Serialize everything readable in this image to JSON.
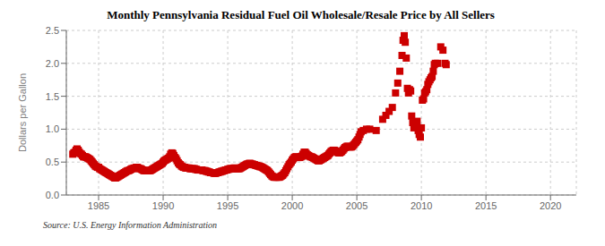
{
  "chart_data": {
    "type": "scatter",
    "title": "Monthly Pennsylvania Residual Fuel Oil Wholesale/Resale Price by All Sellers",
    "y_label": "Dollars per Gallon",
    "annotations": [
      "Source: U.S. Energy Information Administration"
    ],
    "color": "#cc0000",
    "marker": "square",
    "grid": true,
    "xlim": [
      1982.5,
      2022
    ],
    "xticks": [
      1985,
      1990,
      1995,
      2000,
      2005,
      2010,
      2015,
      2020
    ],
    "ylim": [
      0.0,
      2.5
    ],
    "yticks": [
      {
        "value": 0,
        "label": "0.0"
      },
      0.5,
      {
        "value": 1,
        "label": "1.0"
      },
      1.5,
      {
        "value": 2,
        "label": "2.0"
      },
      2.5
    ],
    "x": [
      1983.0,
      1983.08,
      1983.17,
      1983.25,
      1983.33,
      1983.42,
      1983.5,
      1983.58,
      1983.67,
      1983.75,
      1983.83,
      1983.92,
      1984.0,
      1984.08,
      1984.17,
      1984.25,
      1984.33,
      1984.42,
      1984.5,
      1984.58,
      1984.67,
      1984.75,
      1984.83,
      1984.92,
      1985.0,
      1985.08,
      1985.17,
      1985.25,
      1985.33,
      1985.42,
      1985.5,
      1985.58,
      1985.67,
      1985.75,
      1985.83,
      1985.92,
      1986.0,
      1986.08,
      1986.17,
      1986.25,
      1986.33,
      1986.42,
      1986.5,
      1986.58,
      1986.67,
      1986.75,
      1986.83,
      1986.92,
      1987.0,
      1987.08,
      1987.17,
      1987.25,
      1987.33,
      1987.42,
      1987.5,
      1987.58,
      1987.67,
      1987.75,
      1987.83,
      1987.92,
      1988.0,
      1988.08,
      1988.17,
      1988.25,
      1988.33,
      1988.42,
      1988.5,
      1988.58,
      1988.67,
      1988.75,
      1988.83,
      1988.92,
      1989.0,
      1989.08,
      1989.17,
      1989.25,
      1989.33,
      1989.42,
      1989.5,
      1989.58,
      1989.67,
      1989.75,
      1989.83,
      1989.92,
      1990.0,
      1990.08,
      1990.17,
      1990.25,
      1990.33,
      1990.42,
      1990.5,
      1990.58,
      1990.67,
      1990.75,
      1990.83,
      1990.92,
      1991.0,
      1991.08,
      1991.17,
      1991.25,
      1991.33,
      1991.42,
      1991.5,
      1991.58,
      1991.67,
      1991.75,
      1991.83,
      1991.92,
      1992.0,
      1992.08,
      1992.17,
      1992.25,
      1992.33,
      1992.42,
      1992.5,
      1992.58,
      1992.67,
      1992.75,
      1992.83,
      1992.92,
      1993.0,
      1993.08,
      1993.17,
      1993.25,
      1993.33,
      1993.42,
      1993.5,
      1993.58,
      1993.67,
      1993.75,
      1993.83,
      1993.92,
      1994.0,
      1994.08,
      1994.17,
      1994.25,
      1994.33,
      1994.42,
      1994.5,
      1994.58,
      1994.67,
      1994.75,
      1994.83,
      1994.92,
      1995.0,
      1995.08,
      1995.17,
      1995.25,
      1995.33,
      1995.42,
      1995.5,
      1995.58,
      1995.67,
      1995.75,
      1995.83,
      1995.92,
      1996.0,
      1996.08,
      1996.17,
      1996.25,
      1996.33,
      1996.42,
      1996.5,
      1996.58,
      1996.67,
      1996.75,
      1996.83,
      1996.92,
      1997.0,
      1997.08,
      1997.17,
      1997.25,
      1997.33,
      1997.42,
      1997.5,
      1997.58,
      1997.67,
      1997.75,
      1997.83,
      1997.92,
      1998.0,
      1998.08,
      1998.17,
      1998.25,
      1998.33,
      1998.42,
      1998.5,
      1998.58,
      1998.67,
      1998.75,
      1998.83,
      1998.92,
      1999.0,
      1999.08,
      1999.17,
      1999.25,
      1999.33,
      1999.42,
      1999.5,
      1999.58,
      1999.67,
      1999.75,
      1999.83,
      1999.92,
      2000.0,
      2000.08,
      2000.17,
      2000.25,
      2000.33,
      2000.42,
      2000.5,
      2000.58,
      2000.67,
      2000.75,
      2000.83,
      2000.92,
      2001.0,
      2001.08,
      2001.17,
      2001.25,
      2001.33,
      2001.42,
      2001.5,
      2001.58,
      2001.67,
      2001.75,
      2001.83,
      2001.92,
      2002.0,
      2002.08,
      2002.17,
      2002.25,
      2002.33,
      2002.42,
      2002.5,
      2002.58,
      2002.67,
      2002.75,
      2002.83,
      2002.92,
      2003.0,
      2003.08,
      2003.17,
      2003.25,
      2003.33,
      2003.42,
      2003.5,
      2003.58,
      2003.67,
      2003.75,
      2003.83,
      2003.92,
      2004.0,
      2004.08,
      2004.17,
      2004.25,
      2004.33,
      2004.42,
      2004.5,
      2004.58,
      2004.67,
      2004.75,
      2004.83,
      2004.92,
      2005.0,
      2005.08,
      2005.17,
      2005.25,
      2005.33,
      2005.5,
      2005.75,
      2006.0,
      2006.5,
      2007.0,
      2007.25,
      2007.5,
      2007.75,
      2008.0,
      2008.17,
      2008.33,
      2008.5,
      2008.58,
      2008.67,
      2008.75,
      2008.83,
      2008.92,
      2009.0,
      2009.08,
      2009.17,
      2009.25,
      2009.33,
      2009.42,
      2009.5,
      2009.58,
      2009.67,
      2009.75,
      2009.83,
      2009.92,
      2010.0,
      2010.08,
      2010.17,
      2010.25,
      2010.33,
      2010.42,
      2010.5,
      2010.58,
      2010.67,
      2010.75,
      2010.83,
      2010.92,
      2011.0,
      2011.08,
      2011.25,
      2011.5,
      2011.67,
      2011.83,
      2011.92
    ],
    "values": [
      0.62,
      0.64,
      0.65,
      0.68,
      0.7,
      0.68,
      0.65,
      0.63,
      0.62,
      0.6,
      0.58,
      0.58,
      0.58,
      0.57,
      0.56,
      0.55,
      0.54,
      0.52,
      0.5,
      0.48,
      0.46,
      0.44,
      0.43,
      0.42,
      0.42,
      0.4,
      0.39,
      0.38,
      0.37,
      0.36,
      0.35,
      0.34,
      0.33,
      0.32,
      0.31,
      0.3,
      0.29,
      0.28,
      0.27,
      0.26,
      0.26,
      0.27,
      0.28,
      0.29,
      0.3,
      0.31,
      0.32,
      0.33,
      0.34,
      0.35,
      0.36,
      0.37,
      0.37,
      0.38,
      0.39,
      0.4,
      0.4,
      0.41,
      0.41,
      0.42,
      0.42,
      0.41,
      0.4,
      0.4,
      0.39,
      0.38,
      0.37,
      0.37,
      0.37,
      0.37,
      0.37,
      0.37,
      0.37,
      0.38,
      0.39,
      0.4,
      0.41,
      0.42,
      0.43,
      0.44,
      0.45,
      0.46,
      0.47,
      0.48,
      0.5,
      0.52,
      0.53,
      0.54,
      0.55,
      0.56,
      0.58,
      0.62,
      0.64,
      0.63,
      0.6,
      0.57,
      0.55,
      0.52,
      0.49,
      0.47,
      0.46,
      0.44,
      0.43,
      0.42,
      0.42,
      0.41,
      0.41,
      0.41,
      0.41,
      0.4,
      0.4,
      0.4,
      0.4,
      0.4,
      0.39,
      0.39,
      0.38,
      0.38,
      0.38,
      0.38,
      0.38,
      0.37,
      0.37,
      0.37,
      0.36,
      0.36,
      0.35,
      0.35,
      0.34,
      0.34,
      0.34,
      0.33,
      0.33,
      0.33,
      0.34,
      0.34,
      0.35,
      0.35,
      0.36,
      0.36,
      0.37,
      0.37,
      0.38,
      0.38,
      0.39,
      0.39,
      0.4,
      0.4,
      0.4,
      0.4,
      0.41,
      0.41,
      0.4,
      0.4,
      0.4,
      0.4,
      0.41,
      0.42,
      0.43,
      0.44,
      0.45,
      0.46,
      0.47,
      0.47,
      0.48,
      0.48,
      0.47,
      0.47,
      0.46,
      0.46,
      0.45,
      0.45,
      0.44,
      0.44,
      0.43,
      0.43,
      0.42,
      0.41,
      0.4,
      0.39,
      0.38,
      0.37,
      0.35,
      0.33,
      0.31,
      0.29,
      0.28,
      0.27,
      0.27,
      0.27,
      0.27,
      0.27,
      0.27,
      0.28,
      0.29,
      0.3,
      0.32,
      0.34,
      0.37,
      0.4,
      0.43,
      0.46,
      0.48,
      0.5,
      0.53,
      0.55,
      0.57,
      0.58,
      0.58,
      0.57,
      0.57,
      0.57,
      0.58,
      0.59,
      0.62,
      0.65,
      0.65,
      0.63,
      0.61,
      0.6,
      0.59,
      0.58,
      0.58,
      0.57,
      0.56,
      0.55,
      0.54,
      0.53,
      0.52,
      0.52,
      0.53,
      0.54,
      0.55,
      0.56,
      0.57,
      0.58,
      0.59,
      0.6,
      0.62,
      0.64,
      0.66,
      0.67,
      0.68,
      0.68,
      0.67,
      0.66,
      0.65,
      0.64,
      0.64,
      0.65,
      0.66,
      0.68,
      0.7,
      0.72,
      0.73,
      0.74,
      0.74,
      0.73,
      0.73,
      0.73,
      0.74,
      0.76,
      0.78,
      0.8,
      0.82,
      0.84,
      0.88,
      0.92,
      0.96,
      0.98,
      1.0,
      1.0,
      0.98,
      1.15,
      1.21,
      1.27,
      1.33,
      1.55,
      1.7,
      1.88,
      2.12,
      2.35,
      2.42,
      2.32,
      2.08,
      1.62,
      1.55,
      1.6,
      1.58,
      1.2,
      1.1,
      1.02,
      1.05,
      1.08,
      1.12,
      0.98,
      0.92,
      0.88,
      1.02,
      1.44,
      1.46,
      1.55,
      1.57,
      1.6,
      1.68,
      1.72,
      1.75,
      1.78,
      1.8,
      1.88,
      1.98,
      2.0,
      2.0,
      2.25,
      2.2,
      2.0,
      1.98
    ]
  }
}
